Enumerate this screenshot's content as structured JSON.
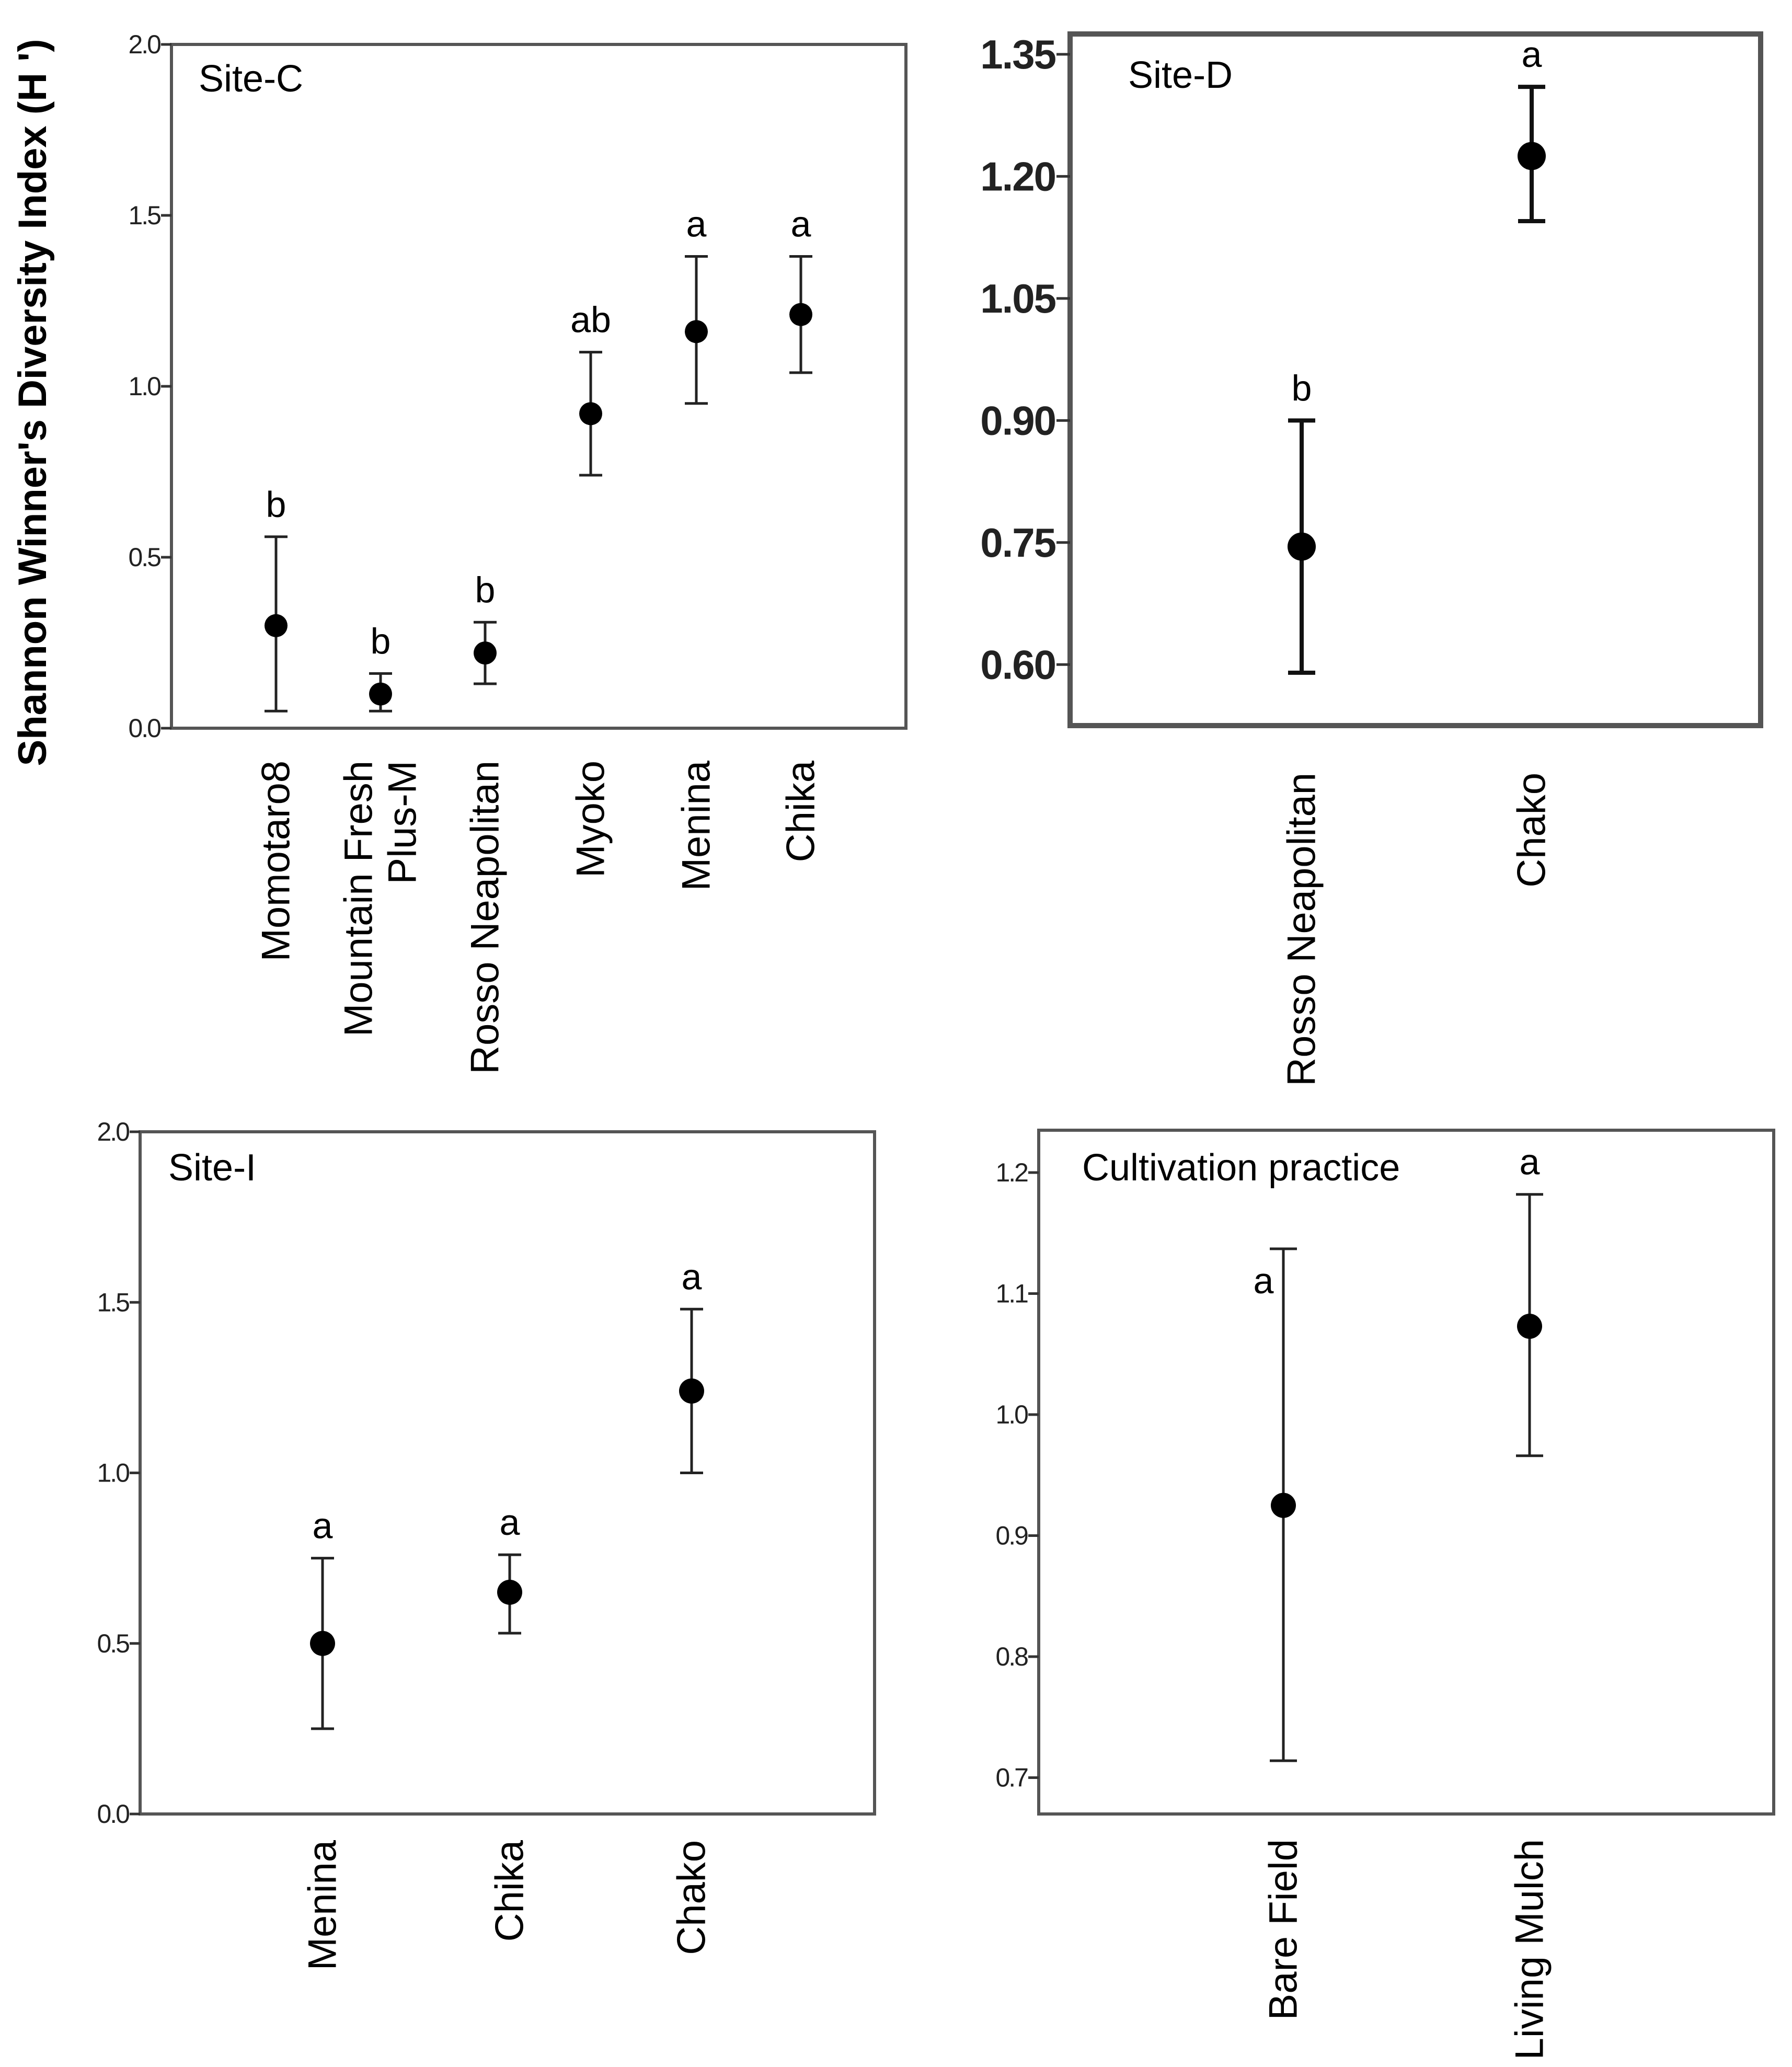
{
  "figure": {
    "ylabel": "Shannon Winner's Diversity Index (H ')"
  },
  "chart_data": [
    {
      "type": "scatter",
      "title": "Site-C",
      "ylim": [
        0,
        2.0
      ],
      "yticks": [
        "0.0",
        "0.5",
        "1.0",
        "1.5",
        "2.0"
      ],
      "tick_values": [
        0,
        0.5,
        1.0,
        1.5,
        2.0
      ],
      "categories": [
        "Momotaro8",
        "Mountain Fresh Plus-M",
        "Rosso Neapolitan",
        "Myoko",
        "Menina",
        "Chika"
      ],
      "category_lines": [
        [
          "Momotaro8"
        ],
        [
          "Mountain Fresh",
          "Plus-M"
        ],
        [
          "Rosso Neapolitan"
        ],
        [
          "Myoko"
        ],
        [
          "Menina"
        ],
        [
          "Chika"
        ]
      ],
      "means": [
        0.3,
        0.1,
        0.22,
        0.92,
        1.16,
        1.21
      ],
      "lower": [
        0.05,
        0.05,
        0.13,
        0.74,
        0.95,
        1.04
      ],
      "upper": [
        0.56,
        0.16,
        0.31,
        1.1,
        1.38,
        1.38
      ],
      "letters": [
        "b",
        "b",
        "b",
        "ab",
        "a",
        "a"
      ]
    },
    {
      "type": "scatter",
      "title": "Site-D",
      "ylim": [
        0.525,
        1.375
      ],
      "yticks": [
        "0.60",
        "0.75",
        "0.90",
        "1.05",
        "1.20",
        "1.35"
      ],
      "tick_values": [
        0.6,
        0.75,
        0.9,
        1.05,
        1.2,
        1.35
      ],
      "categories": [
        "Rosso Neapolitan",
        "Chako"
      ],
      "category_lines": [
        [
          "Rosso Neapolitan"
        ],
        [
          "Chako"
        ]
      ],
      "means": [
        0.745,
        1.225
      ],
      "lower": [
        0.59,
        1.145
      ],
      "upper": [
        0.9,
        1.31
      ],
      "letters": [
        "b",
        "a"
      ]
    },
    {
      "type": "scatter",
      "title": "Site-I",
      "ylim": [
        0,
        2.0
      ],
      "yticks": [
        "0.0",
        "0.5",
        "1.0",
        "1.5",
        "2.0"
      ],
      "tick_values": [
        0,
        0.5,
        1.0,
        1.5,
        2.0
      ],
      "categories": [
        "Menina",
        "Chika",
        "Chako"
      ],
      "category_lines": [
        [
          "Menina"
        ],
        [
          "Chika"
        ],
        [
          "Chako"
        ]
      ],
      "means": [
        0.5,
        0.65,
        1.24
      ],
      "lower": [
        0.25,
        0.53,
        1.0
      ],
      "upper": [
        0.75,
        0.76,
        1.48
      ],
      "letters": [
        "a",
        "a",
        "a"
      ]
    },
    {
      "type": "scatter",
      "title": "Cultivation practice",
      "ylim": [
        0.67,
        1.235
      ],
      "yticks": [
        "0.7",
        "0.8",
        "0.9",
        "1.0",
        "1.1",
        "1.2"
      ],
      "tick_values": [
        0.7,
        0.8,
        0.9,
        1.0,
        1.1,
        1.2
      ],
      "categories": [
        "Bare Field",
        "Living Mulch"
      ],
      "category_lines": [
        [
          "Bare Field"
        ],
        [
          "Living Mulch"
        ]
      ],
      "means": [
        0.925,
        1.073
      ],
      "lower": [
        0.714,
        0.966
      ],
      "upper": [
        1.137,
        1.182
      ],
      "letters": [
        "a",
        "a"
      ]
    }
  ]
}
